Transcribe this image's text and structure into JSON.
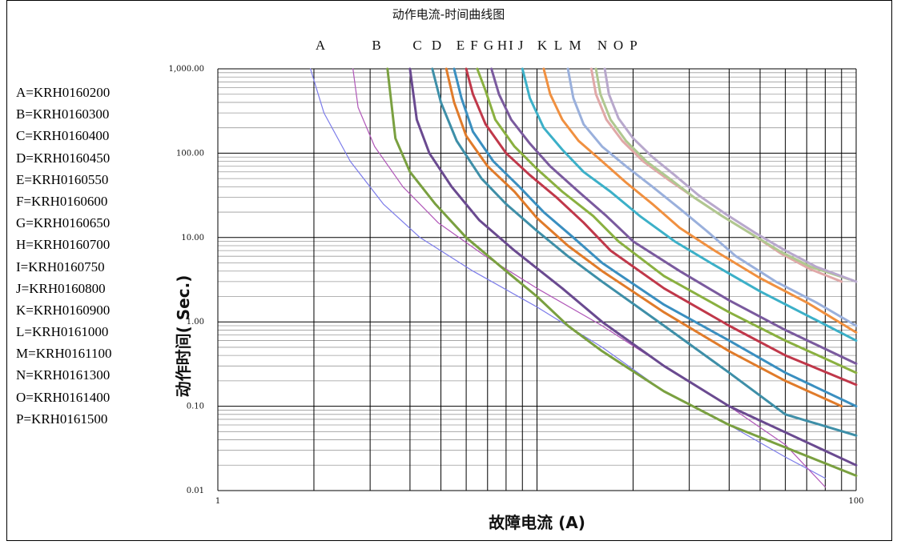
{
  "chart_data": {
    "type": "line",
    "title": "动作电流-时间曲线图",
    "xlabel": "故障电流  (A)",
    "ylabel": "动作时间( Sec.)",
    "xscale": "log",
    "yscale": "log",
    "xlim": [
      1,
      100
    ],
    "ylim": [
      0.01,
      1000
    ],
    "x_tick_labels": [
      "1",
      "100"
    ],
    "y_tick_labels": [
      "0.01",
      "0.10",
      "1.00",
      "10.00",
      "100.00",
      "1,000.00"
    ],
    "grid": true,
    "curve_top_markers": [
      "A",
      "B",
      "C",
      "D",
      "E",
      "F",
      "G",
      "H",
      "I",
      "J",
      "K",
      "L",
      "M",
      "N",
      "O",
      "P"
    ],
    "legend": [
      "A=KRH0160200",
      "B=KRH0160300",
      "C=KRH0160400",
      "D=KRH0160450",
      "E=KRH0160550",
      "F=KRH0160600",
      "G=KRH0160650",
      "H=KRH0160700",
      "I=KRH0160750",
      "J=KRH0160800",
      "K=KRH0160900",
      "L=KRH0161000",
      "M=KRH0161100",
      "N=KRH0161300",
      "O=KRH0161400",
      "P=KRH0161500"
    ],
    "series": [
      {
        "name": "A",
        "color": "#7b7bea",
        "x": [
          1.95,
          2.15,
          2.6,
          3.3,
          4.3,
          6.3,
          10,
          16,
          25,
          40,
          60,
          80
        ],
        "y": [
          1000,
          300,
          80,
          25,
          10,
          4,
          1.5,
          0.5,
          0.15,
          0.06,
          0.025,
          0.014
        ]
      },
      {
        "name": "B",
        "color": "#b056b8",
        "x": [
          2.65,
          2.75,
          3.1,
          3.8,
          4.9,
          6.9,
          10,
          16,
          25,
          40,
          60,
          80
        ],
        "y": [
          1000,
          350,
          120,
          40,
          15,
          6,
          2.5,
          0.9,
          0.3,
          0.1,
          0.035,
          0.011
        ]
      },
      {
        "name": "C",
        "color": "#7aa040",
        "x": [
          3.4,
          3.6,
          4.0,
          4.8,
          6,
          8,
          10,
          12.5,
          16,
          25,
          40,
          100
        ],
        "y": [
          1000,
          150,
          60,
          25,
          10,
          4,
          2,
          0.9,
          0.45,
          0.15,
          0.06,
          0.015
        ]
      },
      {
        "name": "D",
        "color": "#6a4a90",
        "x": [
          4.0,
          4.2,
          4.6,
          5.4,
          6.6,
          8.5,
          12,
          16,
          25,
          40,
          100
        ],
        "y": [
          1000,
          250,
          100,
          40,
          16,
          7,
          2.5,
          1,
          0.3,
          0.1,
          0.02
        ]
      },
      {
        "name": "E",
        "color": "#3e8fa8",
        "x": [
          4.7,
          5.0,
          5.6,
          6.7,
          8,
          10,
          12.5,
          16,
          25,
          40,
          60,
          100
        ],
        "y": [
          1000,
          400,
          140,
          50,
          25,
          12,
          6,
          3,
          0.9,
          0.25,
          0.08,
          0.045
        ]
      },
      {
        "name": "F",
        "color": "#e07b2a",
        "x": [
          5.2,
          5.5,
          6.0,
          7,
          8.5,
          10,
          12.5,
          16,
          25,
          40,
          60,
          90
        ],
        "y": [
          1000,
          400,
          160,
          70,
          35,
          17,
          8,
          4,
          1.3,
          0.45,
          0.2,
          0.1
        ]
      },
      {
        "name": "G",
        "color": "#3a8fc0",
        "x": [
          5.5,
          5.8,
          6.3,
          7.3,
          8.8,
          10.5,
          13,
          16,
          25,
          40,
          60,
          100
        ],
        "y": [
          1000,
          450,
          180,
          80,
          40,
          20,
          10,
          5,
          1.6,
          0.6,
          0.25,
          0.1
        ]
      },
      {
        "name": "H",
        "color": "#c0384a",
        "x": [
          6.0,
          6.3,
          6.9,
          8,
          9.5,
          11.5,
          14,
          17,
          25,
          40,
          60,
          100
        ],
        "y": [
          1000,
          500,
          220,
          100,
          55,
          30,
          15,
          7,
          2.5,
          0.9,
          0.4,
          0.18
        ]
      },
      {
        "name": "I",
        "color": "#8ab040",
        "x": [
          6.5,
          6.9,
          7.4,
          8.5,
          10,
          12,
          15,
          18,
          25,
          40,
          60,
          100
        ],
        "y": [
          1000,
          550,
          250,
          120,
          65,
          35,
          18,
          9,
          3.5,
          1.3,
          0.6,
          0.25
        ]
      },
      {
        "name": "J",
        "color": "#7a5a9e",
        "x": [
          7.2,
          7.6,
          8.3,
          9.5,
          11,
          13.5,
          16.5,
          20,
          28,
          40,
          60,
          100
        ],
        "y": [
          1000,
          500,
          250,
          130,
          70,
          35,
          18,
          9,
          4,
          1.8,
          0.8,
          0.32
        ]
      },
      {
        "name": "K",
        "color": "#3cb0c8",
        "x": [
          9.0,
          9.5,
          10.5,
          12,
          14,
          17,
          21,
          27,
          35,
          50,
          70,
          100
        ],
        "y": [
          1000,
          450,
          200,
          110,
          60,
          35,
          18,
          9,
          5,
          2.3,
          1.2,
          0.6
        ]
      },
      {
        "name": "L",
        "color": "#f09040",
        "x": [
          10.5,
          11,
          12,
          13.5,
          16,
          19,
          23,
          28,
          36,
          50,
          70,
          100
        ],
        "y": [
          1000,
          500,
          250,
          140,
          80,
          45,
          25,
          13,
          7,
          3.3,
          1.7,
          0.75
        ]
      },
      {
        "name": "M",
        "color": "#9ab0dc",
        "x": [
          12.5,
          13,
          14,
          16,
          19,
          23,
          28,
          34,
          42,
          56,
          75,
          100
        ],
        "y": [
          1000,
          450,
          220,
          120,
          70,
          40,
          22,
          12,
          6,
          3,
          1.7,
          0.9
        ]
      },
      {
        "name": "N",
        "color": "#e0a8a8",
        "x": [
          14.8,
          15.3,
          16.5,
          18.5,
          21.5,
          25.5,
          31,
          38,
          47,
          58,
          72,
          90
        ],
        "y": [
          1000,
          500,
          250,
          140,
          80,
          50,
          30,
          18,
          11,
          6.5,
          4.2,
          3
        ]
      },
      {
        "name": "O",
        "color": "#b0c890",
        "x": [
          15.3,
          15.8,
          17,
          19,
          22,
          26,
          31,
          38,
          47,
          58,
          72,
          95
        ],
        "y": [
          1000,
          500,
          250,
          140,
          80,
          50,
          30,
          18,
          11,
          6.8,
          4.5,
          3.2
        ]
      },
      {
        "name": "P",
        "color": "#b8a8cc",
        "x": [
          16.3,
          16.8,
          18,
          20,
          23,
          27,
          32,
          39,
          48,
          60,
          75,
          100
        ],
        "y": [
          1000,
          500,
          260,
          150,
          90,
          55,
          32,
          19,
          11.5,
          7,
          4.5,
          3
        ]
      }
    ]
  }
}
